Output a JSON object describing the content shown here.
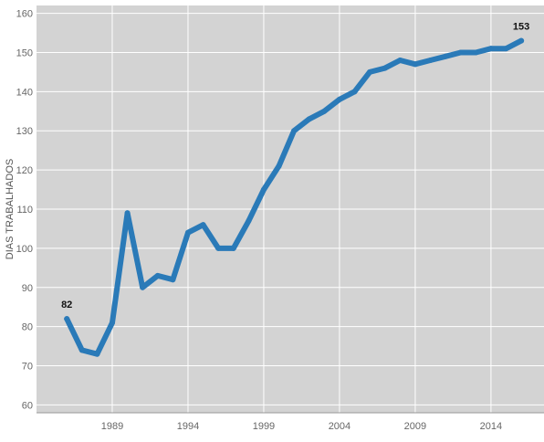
{
  "chart_data": {
    "type": "line",
    "ylabel": "DIAS TRABALHADOS",
    "xlabel": "",
    "title": "",
    "xlim": [
      1984,
      2017.5
    ],
    "ylim": [
      58,
      162
    ],
    "y_ticks": [
      60,
      70,
      80,
      90,
      100,
      110,
      120,
      130,
      140,
      150,
      160
    ],
    "x_ticks": [
      1989,
      1994,
      1999,
      2004,
      2009,
      2014
    ],
    "grid": true,
    "colors": {
      "line": "#2a7ab8",
      "plot_bg": "#d3d3d3",
      "grid": "#ffffff"
    },
    "series": [
      {
        "x": [
          1986,
          1987,
          1988,
          1989,
          1990,
          1991,
          1992,
          1993,
          1994,
          1995,
          1996,
          1997,
          1998,
          1999,
          2000,
          2001,
          2002,
          2003,
          2004,
          2005,
          2006,
          2007,
          2008,
          2009,
          2010,
          2011,
          2012,
          2013,
          2014,
          2015,
          2016
        ],
        "values": [
          82,
          74,
          73,
          81,
          109,
          90,
          93,
          92,
          104,
          106,
          100,
          100,
          107,
          115,
          121,
          130,
          133,
          135,
          138,
          140,
          145,
          146,
          148,
          147,
          148,
          149,
          150,
          150,
          151,
          151,
          153
        ]
      }
    ],
    "annotations": [
      {
        "x": 1986,
        "y": 82,
        "text": "82"
      },
      {
        "x": 2016,
        "y": 153,
        "text": "153"
      }
    ]
  }
}
